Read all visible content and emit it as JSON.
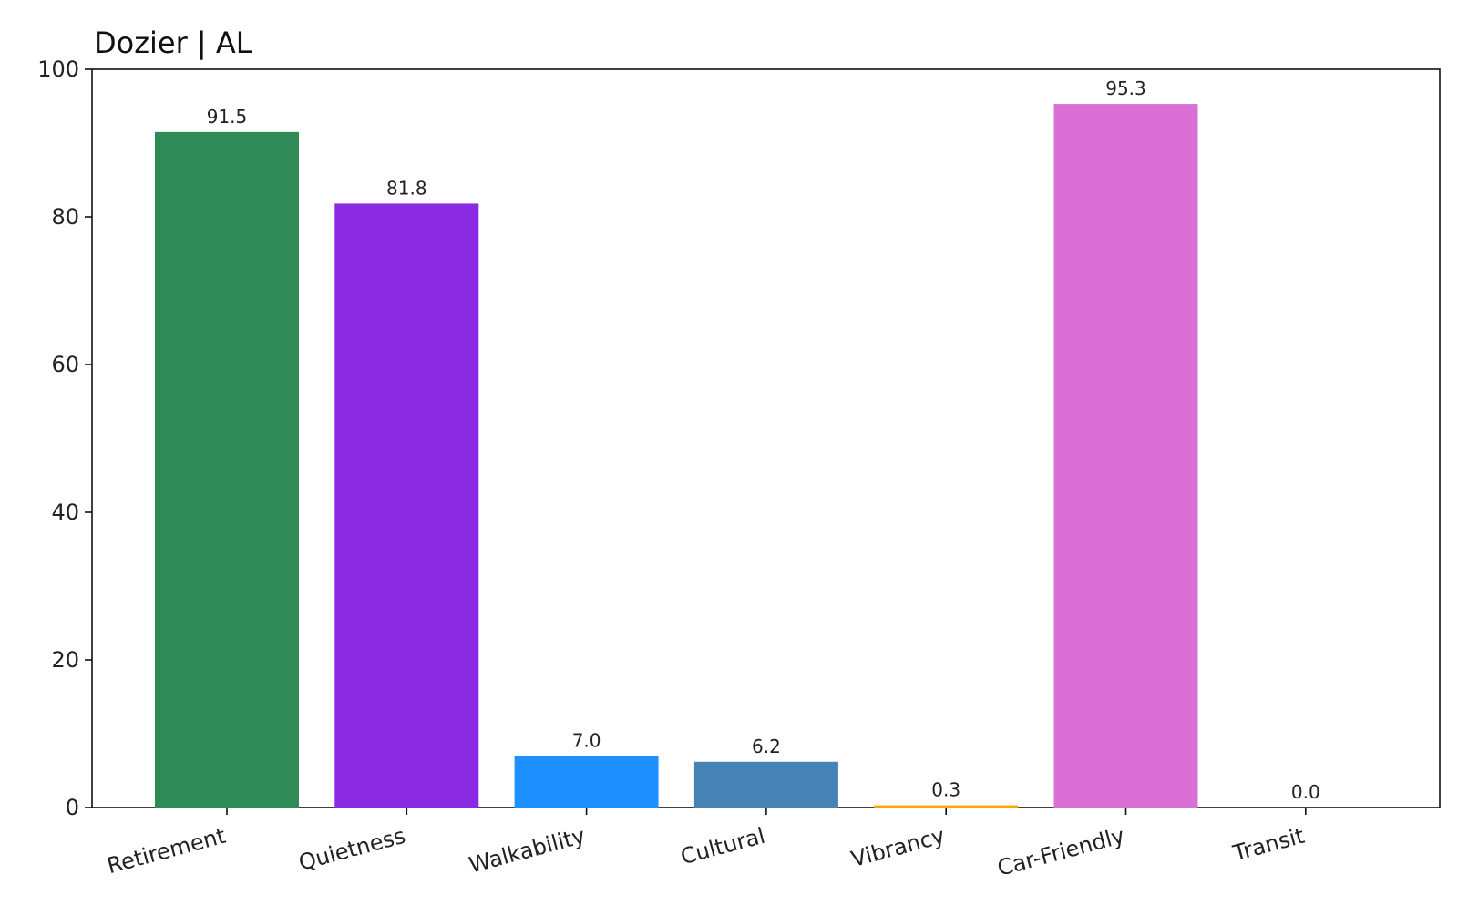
{
  "chart_data": {
    "type": "bar",
    "title": "Dozier | AL",
    "xlabel": "",
    "ylabel": "",
    "categories": [
      "Retirement",
      "Quietness",
      "Walkability",
      "Cultural",
      "Vibrancy",
      "Car-Friendly",
      "Transit"
    ],
    "values": [
      91.5,
      81.8,
      7.0,
      6.2,
      0.3,
      95.3,
      0.0
    ],
    "value_labels": [
      "91.5",
      "81.8",
      "7.0",
      "6.2",
      "0.3",
      "95.3",
      "0.0"
    ],
    "colors": [
      "#2e8b57",
      "#8a2be2",
      "#1e90ff",
      "#4682b4",
      "#ffa500",
      "#da70d6",
      "#8b4513"
    ],
    "ylim": [
      0,
      100
    ],
    "yticks": [
      0,
      20,
      40,
      60,
      80,
      100
    ],
    "grid": false,
    "xtick_rotation_deg": -15
  }
}
